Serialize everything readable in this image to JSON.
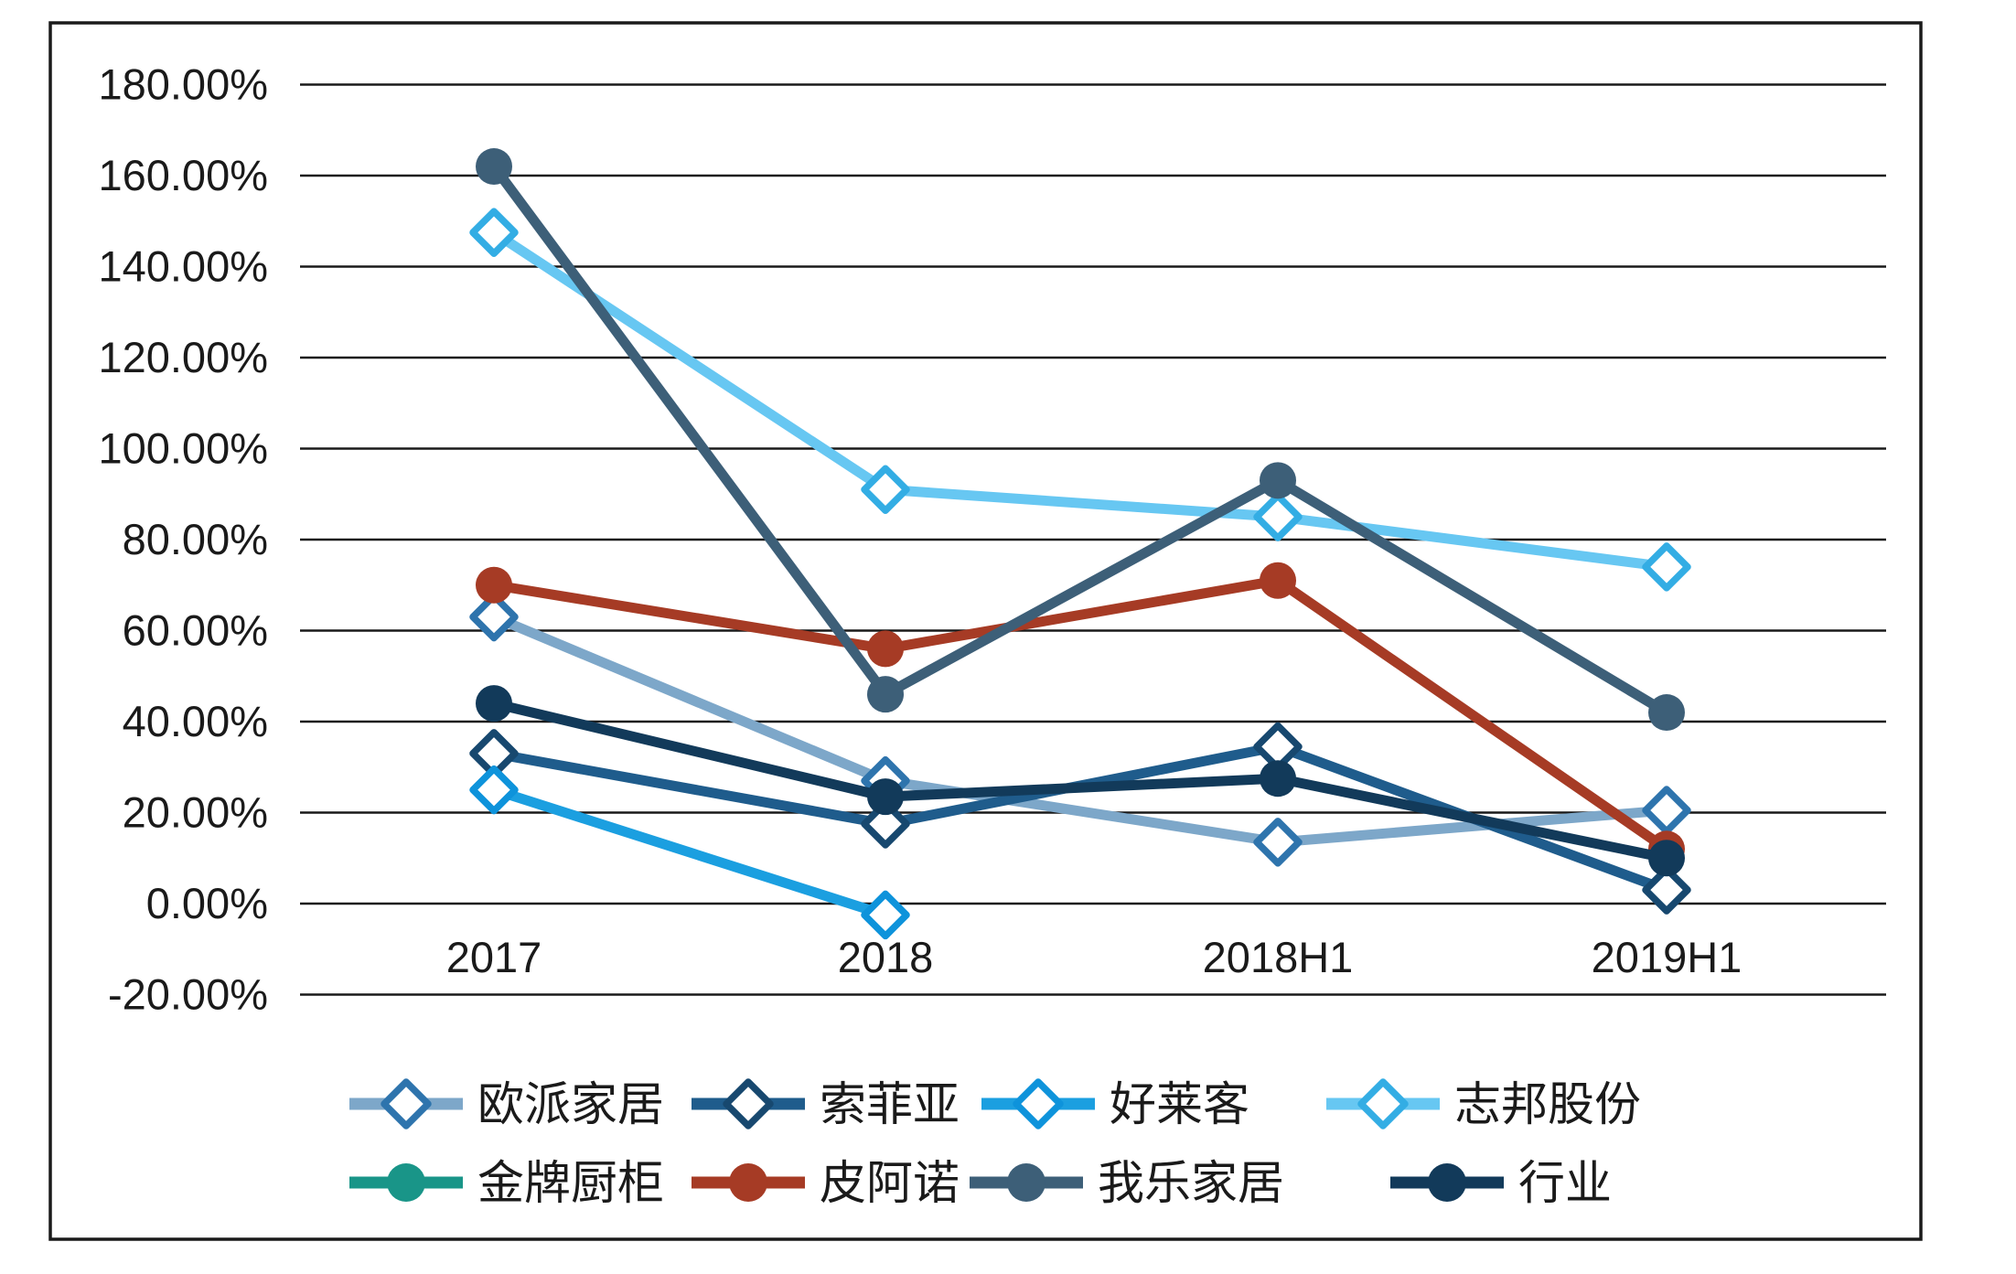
{
  "chart_data": {
    "type": "line",
    "title": "",
    "categories": [
      "2017",
      "2018",
      "2018H1",
      "2019H1"
    ],
    "series": [
      {
        "name": "欧派家居",
        "marker": "diamond",
        "line_color": "#7DA7C9",
        "marker_color": "#2E74AD",
        "values": [
          63,
          27,
          13.5,
          20.5
        ]
      },
      {
        "name": "索菲亚",
        "marker": "diamond",
        "line_color": "#1F5C8C",
        "marker_color": "#17486F",
        "values": [
          33,
          17.5,
          34.5,
          3
        ]
      },
      {
        "name": "好莱客",
        "marker": "diamond",
        "line_color": "#1B9FE0",
        "marker_color": "#0E93DB",
        "values": [
          25,
          -2.5,
          null,
          null
        ]
      },
      {
        "name": "志邦股份",
        "marker": "diamond",
        "line_color": "#67C7F2",
        "marker_color": "#33ADE4",
        "values": [
          147.5,
          91,
          85,
          74
        ]
      },
      {
        "name": "金牌厨柜",
        "marker": "circle",
        "line_color": "#199588",
        "marker_color": "#199588",
        "values": [
          null,
          null,
          null,
          null
        ]
      },
      {
        "name": "皮阿诺",
        "marker": "circle",
        "line_color": "#A63B25",
        "marker_color": "#A63B25",
        "values": [
          70,
          56,
          71,
          12
        ]
      },
      {
        "name": "我乐家居",
        "marker": "circle",
        "line_color": "#3D5F78",
        "marker_color": "#3D5F78",
        "values": [
          162,
          46,
          93,
          42
        ]
      },
      {
        "name": "行业",
        "marker": "circle",
        "line_color": "#123A5A",
        "marker_color": "#123A5A",
        "values": [
          44,
          23.5,
          27.5,
          10
        ]
      }
    ],
    "y_axis": {
      "min": -20,
      "max": 180,
      "step": 20,
      "tick_labels": [
        "180.00%",
        "160.00%",
        "140.00%",
        "120.00%",
        "100.00%",
        "80.00%",
        "60.00%",
        "40.00%",
        "20.00%",
        "0.00%",
        "-20.00%"
      ]
    },
    "x_axis": {
      "tick_labels": [
        "2017",
        "2018",
        "2018H1",
        "2019H1"
      ]
    },
    "grid": true,
    "legend_position": "bottom",
    "colors": {
      "axis_text": "#1a1a1a",
      "gridline": "#1a1a1a",
      "frame": "#1a1a1a",
      "background": "#ffffff"
    }
  }
}
